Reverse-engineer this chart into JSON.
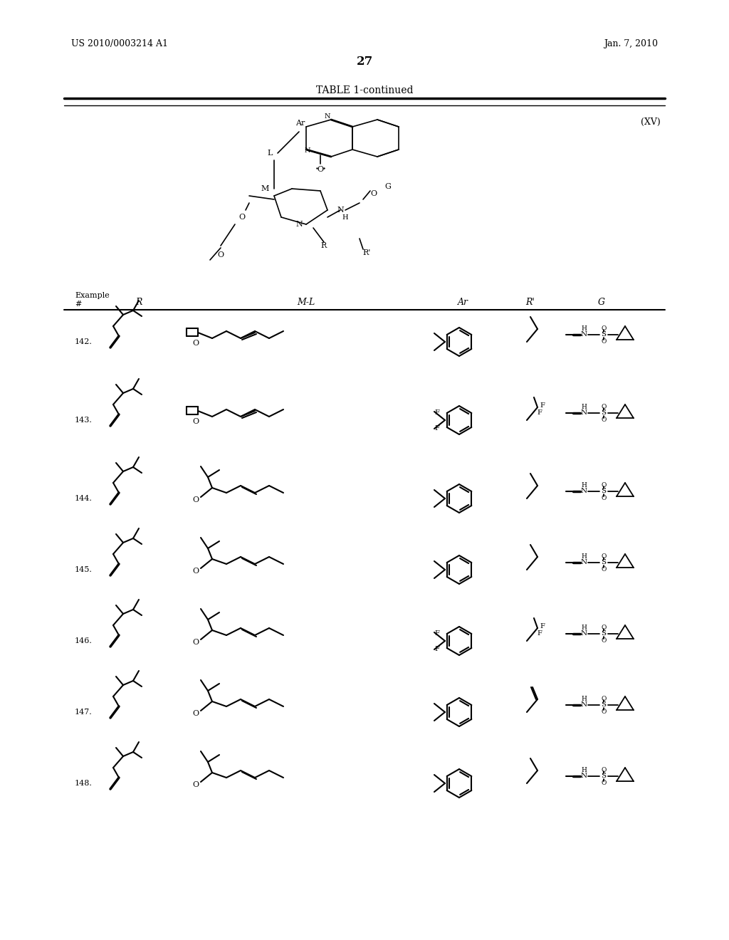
{
  "page_number": "27",
  "patent_number": "US 2010/0003214 A1",
  "patent_date": "Jan. 7, 2010",
  "table_title": "TABLE 1-continued",
  "formula_label": "(XV)",
  "header_row": [
    "Example\n#",
    "R",
    "M-L",
    "Ar",
    "R'",
    "G"
  ],
  "example_numbers": [
    "142.",
    "143.",
    "144.",
    "145.",
    "146.",
    "147.",
    "148."
  ],
  "background_color": "#ffffff",
  "text_color": "#000000",
  "line_color": "#000000"
}
